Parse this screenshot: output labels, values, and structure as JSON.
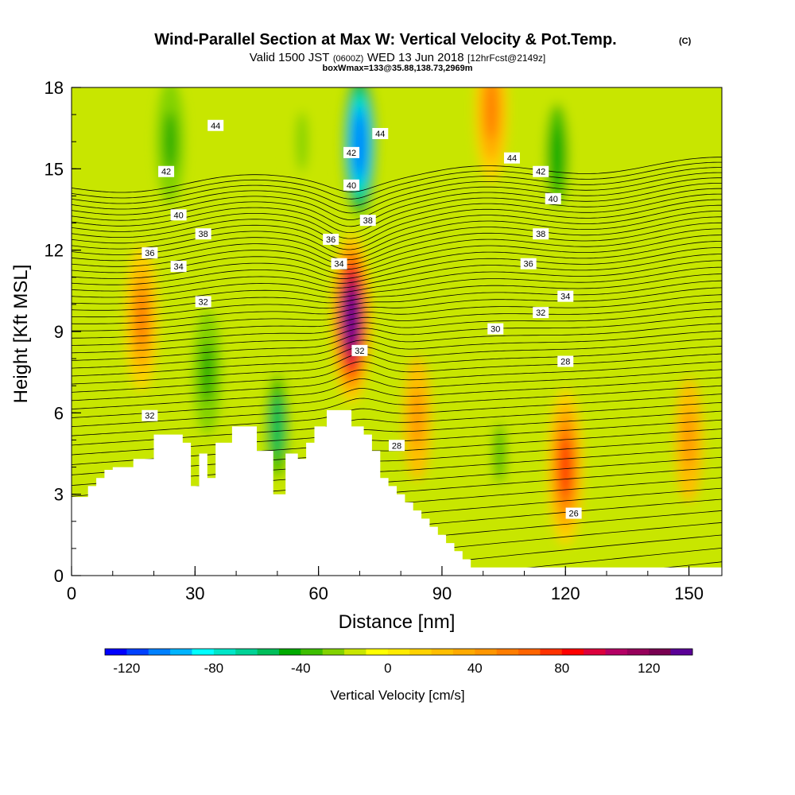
{
  "title": "Wind-Parallel Section at Max W: Vertical Velocity & Pot.Temp.",
  "title_mark": "(C)",
  "subtitle": {
    "valid": "Valid 1500 JST",
    "utc": "(0600Z)",
    "date": "WED 13 Jun 2018",
    "fcst": "[12hrFcst@2149z]"
  },
  "box_info": "boxWmax=133@35.88,138.73,2969m",
  "chart_data": {
    "type": "heatmap",
    "title": "Wind-Parallel Section at Max W: Vertical Velocity & Pot.Temp.",
    "xlabel": "Distance [nm]",
    "ylabel": "Height [Kft MSL]",
    "xlim": [
      0,
      158
    ],
    "ylim": [
      0,
      18
    ],
    "xticks": [
      "0",
      "30",
      "60",
      "90",
      "120",
      "150"
    ],
    "yticks": [
      "0",
      "3",
      "6",
      "9",
      "12",
      "15",
      "18"
    ],
    "colorbar": {
      "label": "Vertical Velocity [cm/s]",
      "ticks": [
        "-120",
        "-80",
        "-40",
        "0",
        "40",
        "80",
        "120"
      ],
      "min": -130,
      "max": 140,
      "step": 10,
      "colors": [
        "#0000ff",
        "#0040ff",
        "#0080ff",
        "#00b4ff",
        "#00ffff",
        "#00e6c8",
        "#00d296",
        "#00be5a",
        "#00aa00",
        "#3cbe00",
        "#82d200",
        "#c8e600",
        "#ffff00",
        "#ffeb00",
        "#ffd200",
        "#ffbe00",
        "#ffaa00",
        "#ff9600",
        "#ff7d00",
        "#ff6400",
        "#ff3200",
        "#ff0000",
        "#dc003c",
        "#b40064",
        "#96005a",
        "#780050",
        "#5a0096"
      ]
    },
    "potential_temperature_labels": [
      {
        "value": "44",
        "x": 35,
        "y": 16.6
      },
      {
        "value": "42",
        "x": 23,
        "y": 14.9
      },
      {
        "value": "40",
        "x": 26,
        "y": 13.3
      },
      {
        "value": "38",
        "x": 32,
        "y": 12.6
      },
      {
        "value": "36",
        "x": 19,
        "y": 11.9
      },
      {
        "value": "34",
        "x": 26,
        "y": 11.4
      },
      {
        "value": "32",
        "x": 32,
        "y": 10.1
      },
      {
        "value": "32",
        "x": 19,
        "y": 5.9
      },
      {
        "value": "44",
        "x": 75,
        "y": 16.3
      },
      {
        "value": "42",
        "x": 68,
        "y": 15.6
      },
      {
        "value": "40",
        "x": 68,
        "y": 14.4
      },
      {
        "value": "38",
        "x": 72,
        "y": 13.1
      },
      {
        "value": "36",
        "x": 63,
        "y": 12.4
      },
      {
        "value": "34",
        "x": 65,
        "y": 11.5
      },
      {
        "value": "32",
        "x": 70,
        "y": 8.3
      },
      {
        "value": "28",
        "x": 79,
        "y": 4.8
      },
      {
        "value": "44",
        "x": 107,
        "y": 15.4
      },
      {
        "value": "42",
        "x": 114,
        "y": 14.9
      },
      {
        "value": "40",
        "x": 117,
        "y": 13.9
      },
      {
        "value": "38",
        "x": 114,
        "y": 12.6
      },
      {
        "value": "36",
        "x": 111,
        "y": 11.5
      },
      {
        "value": "34",
        "x": 120,
        "y": 10.3
      },
      {
        "value": "32",
        "x": 114,
        "y": 9.7
      },
      {
        "value": "30",
        "x": 103,
        "y": 9.1
      },
      {
        "value": "28",
        "x": 120,
        "y": 7.9
      },
      {
        "value": "26",
        "x": 122,
        "y": 2.3
      }
    ],
    "terrain_profile": {
      "x": [
        0,
        4,
        6,
        8,
        10,
        15,
        20,
        23,
        27,
        29,
        31,
        33,
        35,
        39,
        45,
        49,
        52,
        55,
        57,
        59,
        62,
        68,
        71,
        73,
        75,
        77,
        79,
        81,
        83,
        85,
        87,
        89,
        91,
        93,
        95,
        97,
        158
      ],
      "height": [
        2.9,
        3.3,
        3.6,
        3.9,
        4.0,
        4.3,
        5.2,
        5.2,
        4.9,
        3.3,
        4.5,
        3.6,
        4.9,
        5.5,
        4.6,
        3.0,
        4.5,
        4.3,
        4.9,
        5.5,
        6.1,
        5.5,
        5.2,
        4.6,
        3.6,
        3.3,
        3.0,
        2.7,
        2.4,
        2.1,
        1.8,
        1.5,
        1.2,
        0.9,
        0.6,
        0.3,
        0.3
      ]
    },
    "w_features": [
      {
        "x": 68,
        "y": 9.5,
        "w": 130
      },
      {
        "x": 70,
        "y": 15.9,
        "w": -110
      },
      {
        "x": 102,
        "y": 17.2,
        "w": 50
      },
      {
        "x": 17,
        "y": 9.5,
        "w": 55
      },
      {
        "x": 120,
        "y": 4.0,
        "w": 75
      },
      {
        "x": 84,
        "y": 5.8,
        "w": 48
      },
      {
        "x": 150,
        "y": 5.0,
        "w": 40
      },
      {
        "x": 24,
        "y": 16.0,
        "w": -45
      },
      {
        "x": 33,
        "y": 7.5,
        "w": -48
      },
      {
        "x": 50,
        "y": 5.5,
        "w": -55
      },
      {
        "x": 118,
        "y": 15.5,
        "w": -50
      },
      {
        "x": 104,
        "y": 4.5,
        "w": -35
      },
      {
        "x": 56,
        "y": 16.0,
        "w": -30
      }
    ]
  }
}
